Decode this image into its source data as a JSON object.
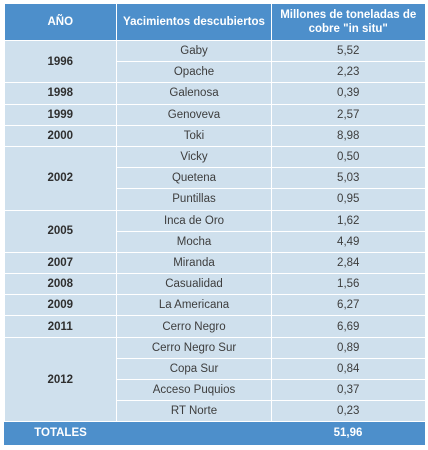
{
  "header": {
    "col_year": "AÑO",
    "col_deposits": "Yacimientos descubiertos",
    "col_tonnes": "Millones de toneladas de cobre \"in situ\""
  },
  "groups": [
    {
      "year": "1996",
      "rows": [
        {
          "name": "Gaby",
          "value": "5,52"
        },
        {
          "name": "Opache",
          "value": "2,23"
        }
      ]
    },
    {
      "year": "1998",
      "rows": [
        {
          "name": "Galenosa",
          "value": "0,39"
        }
      ]
    },
    {
      "year": "1999",
      "rows": [
        {
          "name": "Genoveva",
          "value": "2,57"
        }
      ]
    },
    {
      "year": "2000",
      "rows": [
        {
          "name": "Toki",
          "value": "8,98"
        }
      ]
    },
    {
      "year": "2002",
      "rows": [
        {
          "name": "Vicky",
          "value": "0,50"
        },
        {
          "name": "Quetena",
          "value": "5,03"
        },
        {
          "name": "Puntillas",
          "value": "0,95"
        }
      ]
    },
    {
      "year": "2005",
      "rows": [
        {
          "name": "Inca de Oro",
          "value": "1,62"
        },
        {
          "name": "Mocha",
          "value": "4,49"
        }
      ]
    },
    {
      "year": "2007",
      "rows": [
        {
          "name": "Miranda",
          "value": "2,84"
        }
      ]
    },
    {
      "year": "2008",
      "rows": [
        {
          "name": "Casualidad",
          "value": "1,56"
        }
      ]
    },
    {
      "year": "2009",
      "rows": [
        {
          "name": "La Americana",
          "value": "6,27"
        }
      ]
    },
    {
      "year": "2011",
      "rows": [
        {
          "name": "Cerro Negro",
          "value": "6,69"
        }
      ]
    },
    {
      "year": "2012",
      "rows": [
        {
          "name": "Cerro Negro Sur",
          "value": "0,89"
        },
        {
          "name": "Copa Sur",
          "value": "0,84"
        },
        {
          "name": "Acceso Puquios",
          "value": "0,37"
        },
        {
          "name": "RT Norte",
          "value": "0,23"
        }
      ]
    }
  ],
  "footer": {
    "label": "TOTALES",
    "total": "51,96"
  },
  "colors": {
    "header_bg": "#4d8fcb",
    "body_bg": "#cfe0ed",
    "header_text": "#ffffff"
  }
}
